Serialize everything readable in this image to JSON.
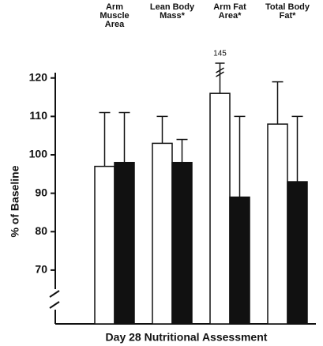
{
  "chart_data": {
    "type": "bar",
    "title": "Day 28 Nutritional Assessment",
    "y_label": "% of Baseline",
    "categories": [
      "Arm Muscle Area",
      "Lean Body Mass*",
      "Arm Fat Area*",
      "Total Body Fat*"
    ],
    "series": [
      {
        "color": "#ffffff",
        "values": [
          97,
          103,
          116,
          108
        ],
        "error_upper": [
          111,
          110,
          145,
          119
        ]
      },
      {
        "color": "#111111",
        "values": [
          98,
          98,
          89,
          93
        ],
        "error_upper": [
          111,
          104,
          110,
          110
        ]
      }
    ],
    "ylim": [
      56,
      122
    ],
    "yticks": [
      70,
      80,
      90,
      100,
      110,
      120
    ],
    "axis_break": true
  }
}
